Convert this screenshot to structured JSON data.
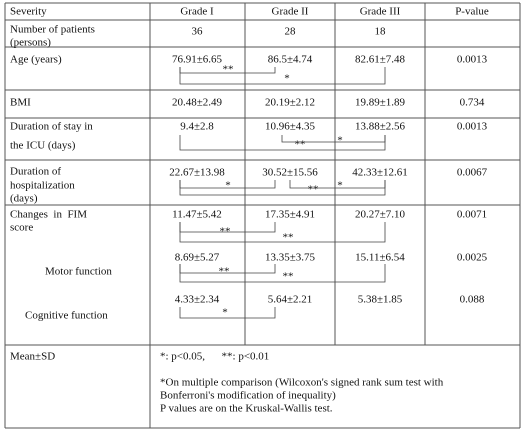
{
  "table": {
    "header": [
      "Severity",
      "Grade I",
      "Grade II",
      "Grade III",
      "P-value"
    ],
    "rows": [
      {
        "label": [
          "Number of patients",
          "(persons)"
        ],
        "values": [
          "36",
          "28",
          "18"
        ]
      },
      {
        "label": [
          "Age (years)"
        ],
        "values": [
          "76.91±6.65",
          "86.5±4.74",
          "82.61±7.48"
        ],
        "p": "0.0013",
        "significance": [
          "**",
          "*"
        ]
      },
      {
        "label": [
          "BMI"
        ],
        "values": [
          "20.48±2.49",
          "20.19±2.12",
          "19.89±1.89"
        ],
        "p": "0.734"
      },
      {
        "label": [
          "Duration of stay in",
          "the ICU (days)"
        ],
        "values": [
          "9.4±2.8",
          "10.96±4.35",
          "13.88±2.56"
        ],
        "p": "0.0013",
        "significance": [
          "**",
          "*"
        ]
      },
      {
        "label": [
          "Duration of",
          "hospitalization",
          "(days)"
        ],
        "values": [
          "22.67±13.98",
          "30.52±15.56",
          "42.33±12.61"
        ],
        "p": "0.0067",
        "significance": [
          "*",
          "**",
          "*"
        ]
      },
      {
        "label": [
          "Changes  in  FIM",
          "score"
        ],
        "values": [
          "11.47±5.42",
          "17.35±4.91",
          "20.27±7.10"
        ],
        "p": "0.0071",
        "significance": [
          "**",
          "**"
        ]
      },
      {
        "label": [
          "Motor function"
        ],
        "values": [
          "8.69±5.27",
          "13.35±3.75",
          "15.11±6.54"
        ],
        "p": "0.0025",
        "significance": [
          "**",
          "**"
        ]
      },
      {
        "label": [
          "Cognitive function"
        ],
        "values": [
          "4.33±2.34",
          "5.64±2.21",
          "5.38±1.85"
        ],
        "p": "0.088",
        "significance": [
          "*"
        ]
      }
    ],
    "footer": {
      "label": "Mean±SD",
      "legend": "*: p<0.05,      **: p<0.01",
      "notes": [
        "*On multiple comparison (Wilcoxon's signed rank sum test with",
        "Bonferroni's modification of inequality)",
        "P values are on the Kruskal-Wallis test."
      ]
    }
  }
}
